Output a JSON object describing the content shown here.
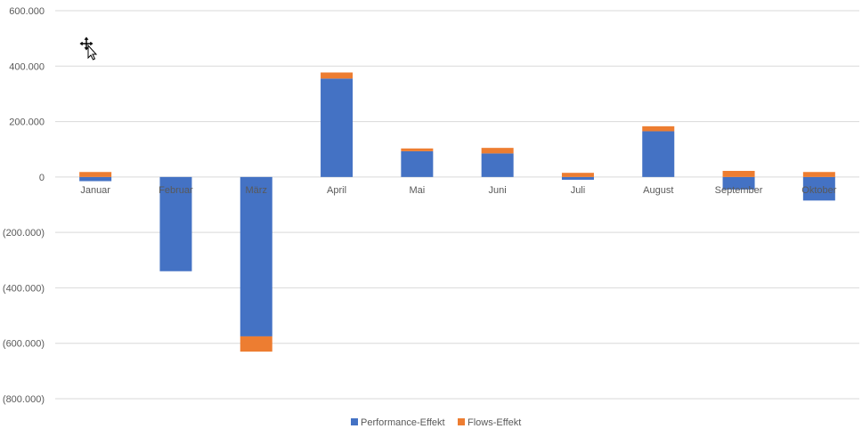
{
  "chart_data": {
    "type": "bar",
    "stacked": true,
    "categories": [
      "Januar",
      "Februar",
      "März",
      "April",
      "Mai",
      "Juni",
      "Juli",
      "August",
      "September",
      "Oktober"
    ],
    "series": [
      {
        "name": "Performance-Effekt",
        "color": "#4472C4",
        "values": [
          -15000,
          -340000,
          -575000,
          355000,
          93000,
          85000,
          -10000,
          165000,
          -45000,
          -85000
        ]
      },
      {
        "name": "Flows-Effekt",
        "color": "#ED7D31",
        "values": [
          18000,
          0,
          -55000,
          22000,
          10000,
          20000,
          15000,
          18000,
          22000,
          18000
        ]
      }
    ],
    "yticks": [
      "600.000",
      "400.000",
      "200.000",
      "0",
      "(200.000)",
      "(400.000)",
      "(600.000)",
      "(800.000)"
    ],
    "ylim": [
      -800000,
      600000
    ],
    "grid": true,
    "legend_position": "bottom"
  },
  "ui": {
    "cursor_icon": "move-cursor-icon"
  }
}
